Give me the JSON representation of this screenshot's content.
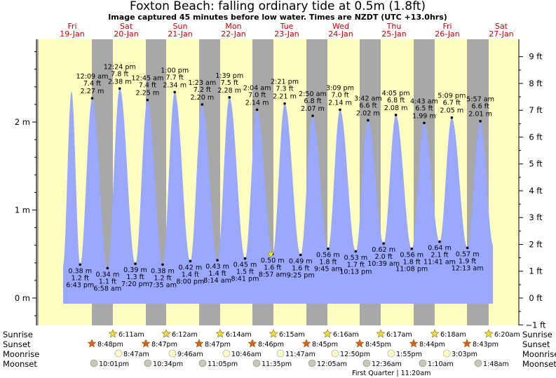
{
  "title": "Foxton Beach: falling  ordinary tide at 0.5m (1.8ft)",
  "subtitle": "Image captured 45 minutes before low water. Times are NZDT (UTC +13.0hrs)",
  "colors": {
    "day_bg": "#ffffc0",
    "night_bg": "#a8a8a8",
    "tide_fill": "#9aa8ff",
    "day_label": "#cc0000",
    "sun_star_day": "#f2dc40",
    "sun_star_set": "#d4602a",
    "moonrise": "#ffffc8",
    "moonset": "#c8c8b4",
    "now_marker": "#ffff00"
  },
  "days": [
    {
      "dow": "Fri",
      "date": "19-Jan"
    },
    {
      "dow": "Sat",
      "date": "20-Jan"
    },
    {
      "dow": "Sun",
      "date": "21-Jan"
    },
    {
      "dow": "Mon",
      "date": "22-Jan"
    },
    {
      "dow": "Tue",
      "date": "23-Jan"
    },
    {
      "dow": "Wed",
      "date": "24-Jan"
    },
    {
      "dow": "Thu",
      "date": "25-Jan"
    },
    {
      "dow": "Fri",
      "date": "26-Jan"
    },
    {
      "dow": "Sat",
      "date": "27-Jan"
    }
  ],
  "rows": {
    "sunrise": "Sunrise",
    "sunset": "Sunset",
    "moonrise": "Moonrise",
    "moonset": "Moonset"
  },
  "moon_phase": "First Quarter | 11:20am",
  "sunrise_times": [
    "6:11am",
    "6:12am",
    "6:14am",
    "6:15am",
    "6:16am",
    "6:17am",
    "6:18am",
    "6:20am"
  ],
  "sunset_times": [
    "8:48pm",
    "8:47pm",
    "8:47pm",
    "8:46pm",
    "8:45pm",
    "8:45pm",
    "8:44pm",
    "8:43pm"
  ],
  "moonrise_times": [
    "8:47am",
    "9:46am",
    "10:46am",
    "11:47am",
    "12:50pm",
    "1:55pm",
    "3:03pm"
  ],
  "moonset_times": [
    "10:01pm",
    "10:34pm",
    "11:05pm",
    "11:35pm",
    "12:05am",
    "12:36am",
    "1:10am",
    "1:48am"
  ],
  "chart_data": {
    "type": "area",
    "title": "Foxton Beach: falling  ordinary tide at 0.5m (1.8ft)",
    "ylabel": "",
    "yticks_left": [
      "0 m",
      "1 m",
      "2 m"
    ],
    "yticks_right": [
      "−1 ft",
      "0 ft",
      "1 ft",
      "2 ft",
      "3 ft",
      "4 ft",
      "5 ft",
      "6 ft",
      "7 ft",
      "8 ft",
      "9 ft"
    ],
    "ylim_m": [
      -0.3,
      2.9
    ],
    "current": {
      "time": "8:12 am 23-Jan",
      "height_m": 0.5
    },
    "high_tides": [
      {
        "time": "",
        "height_m": 2.35,
        "ft": "",
        "m": ""
      },
      {
        "time": "12:09 am",
        "ft": "7.4 ft",
        "m": "2.27 m",
        "height_m": 2.27
      },
      {
        "time": "12:24 pm",
        "ft": "7.8 ft",
        "m": "2.38 m",
        "height_m": 2.38
      },
      {
        "time": "12:45 am",
        "ft": "7.4 ft",
        "m": "2.25 m",
        "height_m": 2.25
      },
      {
        "time": "1:00 pm",
        "ft": "7.7 ft",
        "m": "2.34 m",
        "height_m": 2.34
      },
      {
        "time": "1:23 am",
        "ft": "7.2 ft",
        "m": "2.20 m",
        "height_m": 2.2
      },
      {
        "time": "1:39 pm",
        "ft": "7.5 ft",
        "m": "2.28 m",
        "height_m": 2.28
      },
      {
        "time": "2:04 am",
        "ft": "7.0 ft",
        "m": "2.14 m",
        "height_m": 2.14
      },
      {
        "time": "2:21 pm",
        "ft": "7.3 ft",
        "m": "2.21 m",
        "height_m": 2.21
      },
      {
        "time": "2:50 am",
        "ft": "6.8 ft",
        "m": "2.07 m",
        "height_m": 2.07
      },
      {
        "time": "3:09 pm",
        "ft": "7.0 ft",
        "m": "2.14 m",
        "height_m": 2.14
      },
      {
        "time": "3:42 am",
        "ft": "6.6 ft",
        "m": "2.02 m",
        "height_m": 2.02
      },
      {
        "time": "4:05 pm",
        "ft": "6.8 ft",
        "m": "2.08 m",
        "height_m": 2.08
      },
      {
        "time": "4:43 am",
        "ft": "6.5 ft",
        "m": "1.99 m",
        "height_m": 1.99
      },
      {
        "time": "5:09 pm",
        "ft": "6.7 ft",
        "m": "2.05 m",
        "height_m": 2.05
      },
      {
        "time": "5:57 am",
        "ft": "6.6 ft",
        "m": "2.01 m",
        "height_m": 2.01
      }
    ],
    "low_tides": [
      {
        "time": "6:43 pm",
        "ft": "1.2 ft",
        "m": "0.38 m",
        "height_m": 0.38
      },
      {
        "time": "6:58 am",
        "ft": "1.1 ft",
        "m": "0.34 m",
        "height_m": 0.34
      },
      {
        "time": "7:20 pm",
        "ft": "1.3 ft",
        "m": "0.39 m",
        "height_m": 0.39
      },
      {
        "time": "7:35 am",
        "ft": "1.2 ft",
        "m": "0.38 m",
        "height_m": 0.38
      },
      {
        "time": "8:00 pm",
        "ft": "1.4 ft",
        "m": "0.42 m",
        "height_m": 0.42
      },
      {
        "time": "8:14 am",
        "ft": "1.4 ft",
        "m": "0.43 m",
        "height_m": 0.43
      },
      {
        "time": "8:41 pm",
        "ft": "1.5 ft",
        "m": "0.45 m",
        "height_m": 0.45
      },
      {
        "time": "8:57 am",
        "ft": "1.6 ft",
        "m": "0.50 m",
        "height_m": 0.5
      },
      {
        "time": "9:25 pm",
        "ft": "1.6 ft",
        "m": "0.49 m",
        "height_m": 0.49
      },
      {
        "time": "9:45 am",
        "ft": "1.8 ft",
        "m": "0.56 m",
        "height_m": 0.56
      },
      {
        "time": "10:13 pm",
        "ft": "1.7 ft",
        "m": "0.53 m",
        "height_m": 0.53
      },
      {
        "time": "10:39 am",
        "ft": "2.0 ft",
        "m": "0.62 m",
        "height_m": 0.62
      },
      {
        "time": "11:08 pm",
        "ft": "1.8 ft",
        "m": "0.56 m",
        "height_m": 0.56
      },
      {
        "time": "11:41 am",
        "ft": "2.1 ft",
        "m": "0.64 m",
        "height_m": 0.64
      },
      {
        "time": "12:13 am",
        "ft": "1.9 ft",
        "m": "0.57 m",
        "height_m": 0.57
      }
    ]
  }
}
